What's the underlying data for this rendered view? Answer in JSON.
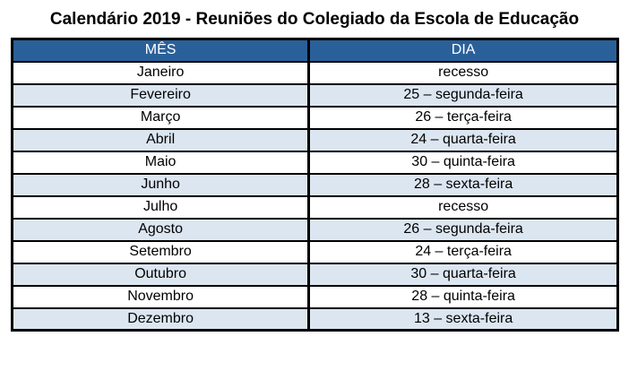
{
  "title": "Calendário 2019 - Reuniões do Colegiado da Escola de Educação",
  "table": {
    "headers": [
      "MÊS",
      "DIA"
    ],
    "rows": [
      {
        "mes": "Janeiro",
        "dia": "recesso"
      },
      {
        "mes": "Fevereiro",
        "dia": "25 – segunda-feira"
      },
      {
        "mes": "Março",
        "dia": "26 – terça-feira"
      },
      {
        "mes": "Abril",
        "dia": "24 – quarta-feira"
      },
      {
        "mes": "Maio",
        "dia": "30 – quinta-feira"
      },
      {
        "mes": "Junho",
        "dia": "28 – sexta-feira"
      },
      {
        "mes": "Julho",
        "dia": "recesso"
      },
      {
        "mes": "Agosto",
        "dia": "26 – segunda-feira"
      },
      {
        "mes": "Setembro",
        "dia": "24 – terça-feira"
      },
      {
        "mes": "Outubro",
        "dia": "30 – quarta-feira"
      },
      {
        "mes": "Novembro",
        "dia": "28 – quinta-feira"
      },
      {
        "mes": "Dezembro",
        "dia": "13 – sexta-feira"
      }
    ]
  },
  "colors": {
    "header_bg": "#2A6099",
    "header_text": "#FFFFFF",
    "row_bg": "#FFFFFF",
    "row_alt_bg": "#DCE6F1",
    "border": "#000000",
    "title_text": "#000000"
  }
}
